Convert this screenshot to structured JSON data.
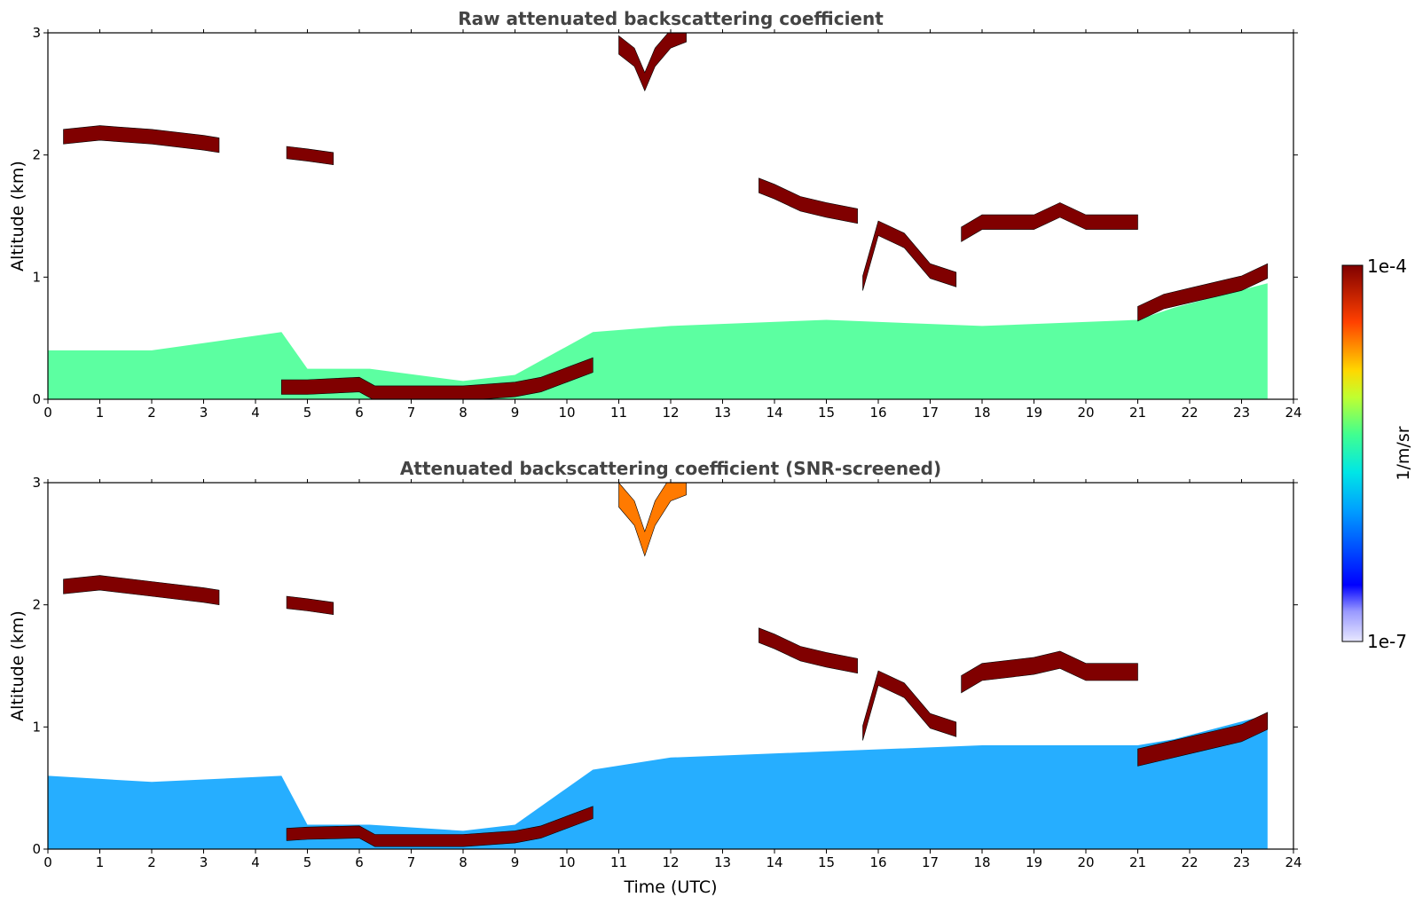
{
  "chart_data": [
    {
      "type": "heatmap",
      "title": "Raw attenuated backscattering coefficient",
      "xlabel": "",
      "ylabel": "Altitude (km)",
      "xlim": [
        0,
        24
      ],
      "ylim": [
        0,
        3
      ],
      "x_ticks": [
        0,
        1,
        2,
        3,
        4,
        5,
        6,
        7,
        8,
        9,
        10,
        11,
        12,
        13,
        14,
        15,
        16,
        17,
        18,
        19,
        20,
        21,
        22,
        23,
        24
      ],
      "y_ticks": [
        0,
        1,
        2,
        3
      ],
      "data_end_time": 23.5,
      "layers": [
        {
          "name": "boundary-layer",
          "x": [
            0,
            2,
            4.5,
            5,
            6.2,
            8,
            9,
            10.5,
            12,
            15,
            18,
            21,
            21.7,
            23.5
          ],
          "bottom": [
            0,
            0,
            0,
            0,
            0,
            0,
            0,
            0,
            0,
            0,
            0,
            0,
            0,
            0
          ],
          "top": [
            0.4,
            0.4,
            0.55,
            0.25,
            0.25,
            0.15,
            0.2,
            0.55,
            0.6,
            0.65,
            0.6,
            0.65,
            0.75,
            0.95
          ],
          "level": 0.55
        },
        {
          "name": "cloud-base-low",
          "x": [
            4.5,
            5,
            6,
            6.3,
            8,
            9,
            9.5,
            10,
            10.5
          ],
          "center": [
            0.1,
            0.1,
            0.12,
            0.05,
            0.05,
            0.08,
            0.12,
            0.2,
            0.28
          ],
          "thickness": 0.12,
          "level": 1.0
        },
        {
          "name": "cloud-layer-1",
          "x": [
            0.3,
            1,
            2,
            3,
            3.3
          ],
          "center": [
            2.15,
            2.18,
            2.15,
            2.1,
            2.08
          ],
          "thickness": 0.12,
          "level": 1.0
        },
        {
          "name": "cloud-layer-2",
          "x": [
            4.6,
            5,
            5.5
          ],
          "center": [
            2.02,
            2.0,
            1.97
          ],
          "thickness": 0.1,
          "level": 1.0
        },
        {
          "name": "cirrus-top",
          "x": [
            11,
            11.3,
            11.5,
            11.7,
            12,
            12.3
          ],
          "center": [
            2.9,
            2.8,
            2.6,
            2.8,
            2.95,
            3.0
          ],
          "thickness": 0.15,
          "level": 1.0
        },
        {
          "name": "cloud-layer-3",
          "x": [
            13.7,
            14,
            14.5,
            15,
            15.6
          ],
          "center": [
            1.75,
            1.7,
            1.6,
            1.55,
            1.5
          ],
          "thickness": 0.12,
          "level": 1.0
        },
        {
          "name": "cloud-layer-4",
          "x": [
            15.7,
            16,
            16.5,
            17,
            17.5
          ],
          "center": [
            0.95,
            1.4,
            1.3,
            1.05,
            0.98
          ],
          "thickness": 0.12,
          "level": 1.0
        },
        {
          "name": "cloud-layer-5",
          "x": [
            17.6,
            18,
            19,
            19.5,
            20,
            21
          ],
          "center": [
            1.35,
            1.45,
            1.45,
            1.55,
            1.45,
            1.45
          ],
          "thickness": 0.12,
          "level": 1.0
        },
        {
          "name": "cloud-layer-6",
          "x": [
            21,
            21.5,
            22,
            22.5,
            23,
            23.5
          ],
          "center": [
            0.7,
            0.8,
            0.85,
            0.9,
            0.95,
            1.05
          ],
          "thickness": 0.12,
          "level": 1.0
        }
      ]
    },
    {
      "type": "heatmap",
      "title": "Attenuated backscattering coefficient (SNR-screened)",
      "xlabel": "Time (UTC)",
      "ylabel": "Altitude (km)",
      "xlim": [
        0,
        24
      ],
      "ylim": [
        0,
        3
      ],
      "x_ticks": [
        0,
        1,
        2,
        3,
        4,
        5,
        6,
        7,
        8,
        9,
        10,
        11,
        12,
        13,
        14,
        15,
        16,
        17,
        18,
        19,
        20,
        21,
        22,
        23,
        24
      ],
      "y_ticks": [
        0,
        1,
        2,
        3
      ],
      "data_end_time": 23.5,
      "layers": [
        {
          "name": "boundary-layer-screened",
          "x": [
            0,
            2,
            4.5,
            5,
            6.2,
            8,
            9,
            10.5,
            12,
            15,
            18,
            21,
            21.7,
            23.5
          ],
          "bottom": [
            0,
            0,
            0,
            0,
            0,
            0,
            0,
            0,
            0,
            0,
            0,
            0,
            0,
            0
          ],
          "top": [
            0.6,
            0.55,
            0.6,
            0.2,
            0.2,
            0.15,
            0.2,
            0.65,
            0.75,
            0.8,
            0.85,
            0.85,
            0.9,
            1.1
          ],
          "level": 0.35
        },
        {
          "name": "cloud-base-low-screened",
          "x": [
            4.6,
            5,
            6,
            6.3,
            8,
            9,
            9.5,
            10,
            10.5
          ],
          "center": [
            0.12,
            0.13,
            0.14,
            0.07,
            0.07,
            0.1,
            0.14,
            0.22,
            0.3
          ],
          "thickness": 0.1,
          "level": 1.0
        },
        {
          "name": "cloud-layer-1-screened",
          "x": [
            0.3,
            1,
            2,
            3,
            3.3
          ],
          "center": [
            2.15,
            2.18,
            2.13,
            2.08,
            2.06
          ],
          "thickness": 0.12,
          "level": 1.0
        },
        {
          "name": "cloud-layer-2-screened",
          "x": [
            4.6,
            5,
            5.5
          ],
          "center": [
            2.02,
            2.0,
            1.97
          ],
          "thickness": 0.1,
          "level": 1.0
        },
        {
          "name": "cirrus-top-screened",
          "x": [
            11,
            11.3,
            11.5,
            11.7,
            12,
            12.3
          ],
          "center": [
            2.9,
            2.75,
            2.5,
            2.75,
            2.95,
            3.0
          ],
          "thickness": 0.2,
          "level": 0.8
        },
        {
          "name": "cloud-layer-3-screened",
          "x": [
            13.7,
            14,
            14.5,
            15,
            15.6
          ],
          "center": [
            1.75,
            1.7,
            1.6,
            1.55,
            1.5
          ],
          "thickness": 0.12,
          "level": 1.0
        },
        {
          "name": "cloud-layer-4-screened",
          "x": [
            15.7,
            16,
            16.5,
            17,
            17.5
          ],
          "center": [
            0.95,
            1.4,
            1.3,
            1.05,
            0.98
          ],
          "thickness": 0.12,
          "level": 1.0
        },
        {
          "name": "cloud-layer-5-screened",
          "x": [
            17.6,
            18,
            19,
            19.5,
            20,
            21
          ],
          "center": [
            1.35,
            1.45,
            1.5,
            1.55,
            1.45,
            1.45
          ],
          "thickness": 0.14,
          "level": 1.0
        },
        {
          "name": "cloud-layer-6-screened",
          "x": [
            21,
            21.5,
            22,
            22.5,
            23,
            23.5
          ],
          "center": [
            0.75,
            0.8,
            0.85,
            0.9,
            0.95,
            1.05
          ],
          "thickness": 0.14,
          "level": 1.0
        }
      ]
    }
  ],
  "colorbar": {
    "label": "1/m/sr",
    "max_label": "1e-4",
    "min_label": "1e-7",
    "colormap": "jet"
  },
  "colors": {
    "axes": "#000000",
    "title": "#444444",
    "background": "#ffffff"
  }
}
